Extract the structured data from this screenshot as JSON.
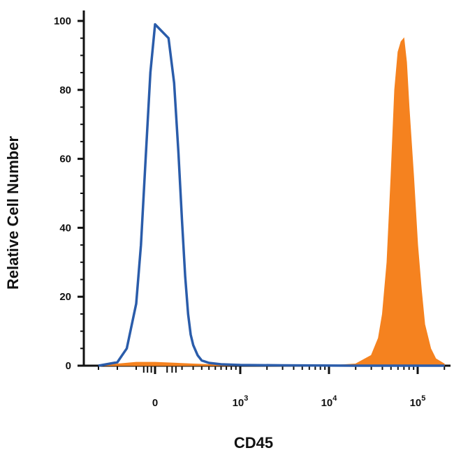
{
  "chart_data": {
    "type": "area",
    "xlabel": "CD45",
    "ylabel": "Relative Cell Number",
    "ylim": [
      0,
      100
    ],
    "y_ticks": [
      "0",
      "20",
      "40",
      "60",
      "80",
      "100"
    ],
    "x_scale": "biexponential",
    "x_ticks": [
      {
        "base": "0",
        "exp": ""
      },
      {
        "base": "10",
        "exp": "3"
      },
      {
        "base": "10",
        "exp": "4"
      },
      {
        "base": "10",
        "exp": "5"
      }
    ],
    "grid": false,
    "series": [
      {
        "style": "outline",
        "color": "#2a5caa",
        "x": [
          -300,
          -200,
          -150,
          -100,
          -75,
          -50,
          -25,
          0,
          25,
          50,
          75,
          100,
          125,
          150,
          175,
          200,
          250,
          300,
          400,
          600,
          1000,
          3000,
          20000,
          200000
        ],
        "y": [
          0,
          1,
          5,
          18,
          35,
          60,
          85,
          99,
          95,
          82,
          62,
          42,
          26,
          15,
          9,
          6,
          3,
          1.5,
          0.8,
          0.4,
          0.2,
          0.1,
          0,
          0
        ]
      },
      {
        "style": "filled",
        "color": "#f5821f",
        "x": [
          -300,
          -100,
          0,
          200,
          600,
          10000,
          20000,
          30000,
          36000,
          40000,
          45000,
          50000,
          55000,
          60000,
          65000,
          70000,
          75000,
          80000,
          90000,
          100000,
          110000,
          120000,
          140000,
          160000,
          200000
        ],
        "y": [
          0,
          1,
          1,
          0.5,
          0.2,
          0,
          0.5,
          3,
          8,
          15,
          30,
          55,
          80,
          91,
          94,
          95,
          88,
          75,
          55,
          35,
          22,
          12,
          5,
          2,
          0.5
        ]
      }
    ]
  }
}
